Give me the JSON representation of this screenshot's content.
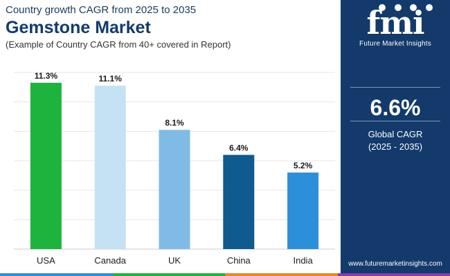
{
  "header": {
    "subtitle": "Country growth CAGR from 2025 to 2035",
    "title": "Gemstone Market",
    "caption": "(Example of Country CAGR from 40+ covered in Report)"
  },
  "chart_data": {
    "type": "bar",
    "title": "Gemstone Market",
    "categories": [
      "USA",
      "Canada",
      "UK",
      "China",
      "India"
    ],
    "values": [
      11.3,
      11.1,
      8.1,
      6.4,
      5.2
    ],
    "value_labels": [
      "11.3%",
      "11.1%",
      "8.1%",
      "6.4%",
      "5.2%"
    ],
    "colors": [
      "#1db33d",
      "#c5e2f5",
      "#7fbbe4",
      "#0f5a8f",
      "#2c8fd9"
    ],
    "ylim": [
      0,
      12
    ],
    "grid": true,
    "xlabel": "",
    "ylabel": ""
  },
  "sidebar": {
    "logo_letters": "fmi",
    "logo_name": "Future Market Insights",
    "global_value": "6.6%",
    "global_label": "Global CAGR",
    "global_range": "(2025 - 2035)",
    "website": "www.futuremarketinsights.com",
    "background": "#133a6b"
  },
  "bottom_bar": {
    "colors": [
      "#2c8fd9",
      "#1db33d",
      "#e7862a",
      "#8a3da6"
    ]
  }
}
